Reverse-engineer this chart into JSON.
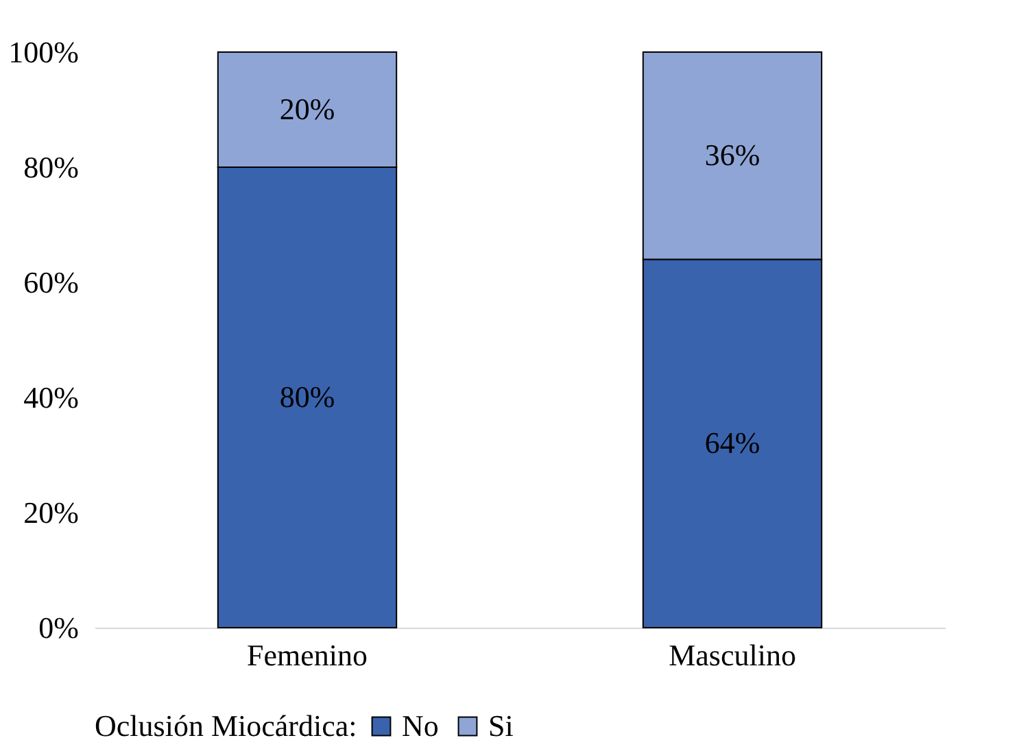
{
  "chart_data": {
    "type": "bar",
    "stacked": true,
    "categories": [
      "Femenino",
      "Masculino"
    ],
    "series": [
      {
        "name": "No",
        "color": "#3a63ad",
        "values": [
          80,
          64
        ],
        "value_labels": [
          "80%",
          "64%"
        ]
      },
      {
        "name": "Si",
        "color": "#8fa5d6",
        "values": [
          20,
          36
        ],
        "value_labels": [
          "20%",
          "36%"
        ]
      }
    ],
    "ylim": [
      0,
      100
    ],
    "yticks": [
      {
        "value": 0,
        "label": "0%"
      },
      {
        "value": 20,
        "label": "20%"
      },
      {
        "value": 40,
        "label": "40%"
      },
      {
        "value": 60,
        "label": "60%"
      },
      {
        "value": 80,
        "label": "80%"
      },
      {
        "value": 100,
        "label": "100%"
      }
    ],
    "legend_title": "Oclusión Miocárdica:",
    "legend": "bottom",
    "grid": false
  }
}
